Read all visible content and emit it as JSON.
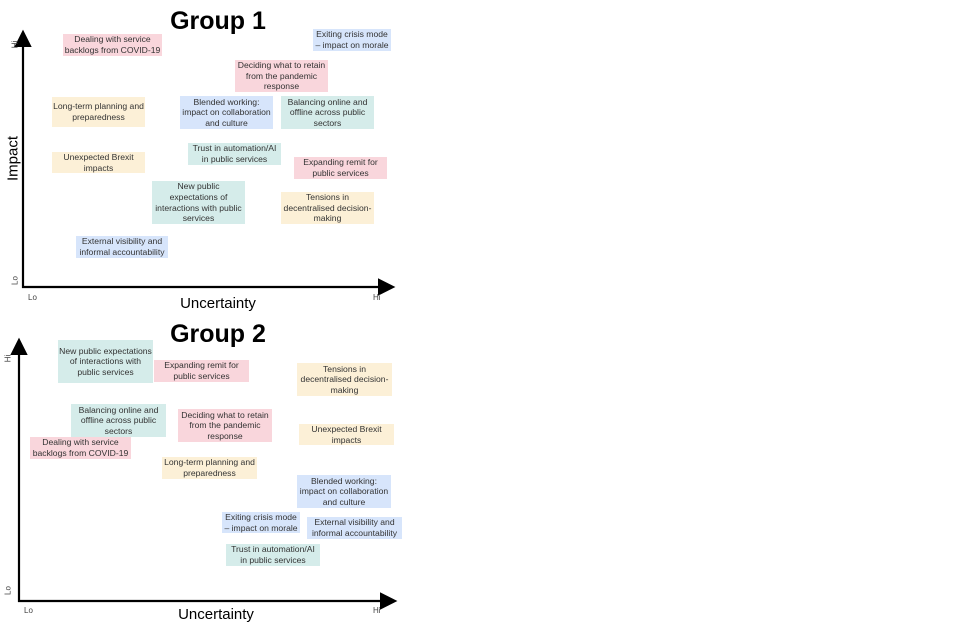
{
  "colors": {
    "pink": "#f9d6dc",
    "blue": "#d7e5fb",
    "teal": "#d5ecea",
    "yellow": "#fcf0d7"
  },
  "group1": {
    "title": "Group 1",
    "y_axis": "Impact",
    "x_axis": "Uncertainty",
    "y_hi": "Hi",
    "y_lo": "Lo",
    "x_lo": "Lo",
    "x_hi": "Hi",
    "items": [
      {
        "text": "Dealing with service backlogs from COVID-19",
        "color": "pink"
      },
      {
        "text": "Exiting crisis mode – impact on morale",
        "color": "blue"
      },
      {
        "text": "Deciding what to retain from the pandemic response",
        "color": "pink"
      },
      {
        "text": "Long-term planning and preparedness",
        "color": "yellow"
      },
      {
        "text": "Blended working: impact on collaboration and culture",
        "color": "blue"
      },
      {
        "text": "Balancing online and offline across public sectors",
        "color": "teal"
      },
      {
        "text": "Trust in automation/AI in public services",
        "color": "teal"
      },
      {
        "text": "Unexpected Brexit impacts",
        "color": "yellow"
      },
      {
        "text": "Expanding remit for public services",
        "color": "pink"
      },
      {
        "text": "New public expectations of interactions with public services",
        "color": "teal"
      },
      {
        "text": "Tensions in decentralised decision-making",
        "color": "yellow"
      },
      {
        "text": "External visibility and informal accountability",
        "color": "blue"
      }
    ]
  },
  "group2": {
    "title": "Group 2",
    "x_axis": "Uncertainty",
    "y_hi": "Hi",
    "y_lo": "Lo",
    "x_lo": "Lo",
    "x_hi": "Hi",
    "items": [
      {
        "text": "New public expectations of interactions with public services",
        "color": "teal"
      },
      {
        "text": "Expanding remit for public services",
        "color": "pink"
      },
      {
        "text": "Tensions in decentralised decision-making",
        "color": "yellow"
      },
      {
        "text": "Balancing online and offline across public sectors",
        "color": "teal"
      },
      {
        "text": "Deciding what to retain from the pandemic response",
        "color": "pink"
      },
      {
        "text": "Dealing with service backlogs from COVID-19",
        "color": "pink"
      },
      {
        "text": "Unexpected Brexit impacts",
        "color": "yellow"
      },
      {
        "text": "Long-term planning and preparedness",
        "color": "yellow"
      },
      {
        "text": "Blended working: impact on collaboration and culture",
        "color": "blue"
      },
      {
        "text": "Exiting crisis mode – impact on morale",
        "color": "blue"
      },
      {
        "text": "External visibility and informal accountability",
        "color": "blue"
      },
      {
        "text": "Trust in automation/AI in public services",
        "color": "teal"
      }
    ]
  }
}
